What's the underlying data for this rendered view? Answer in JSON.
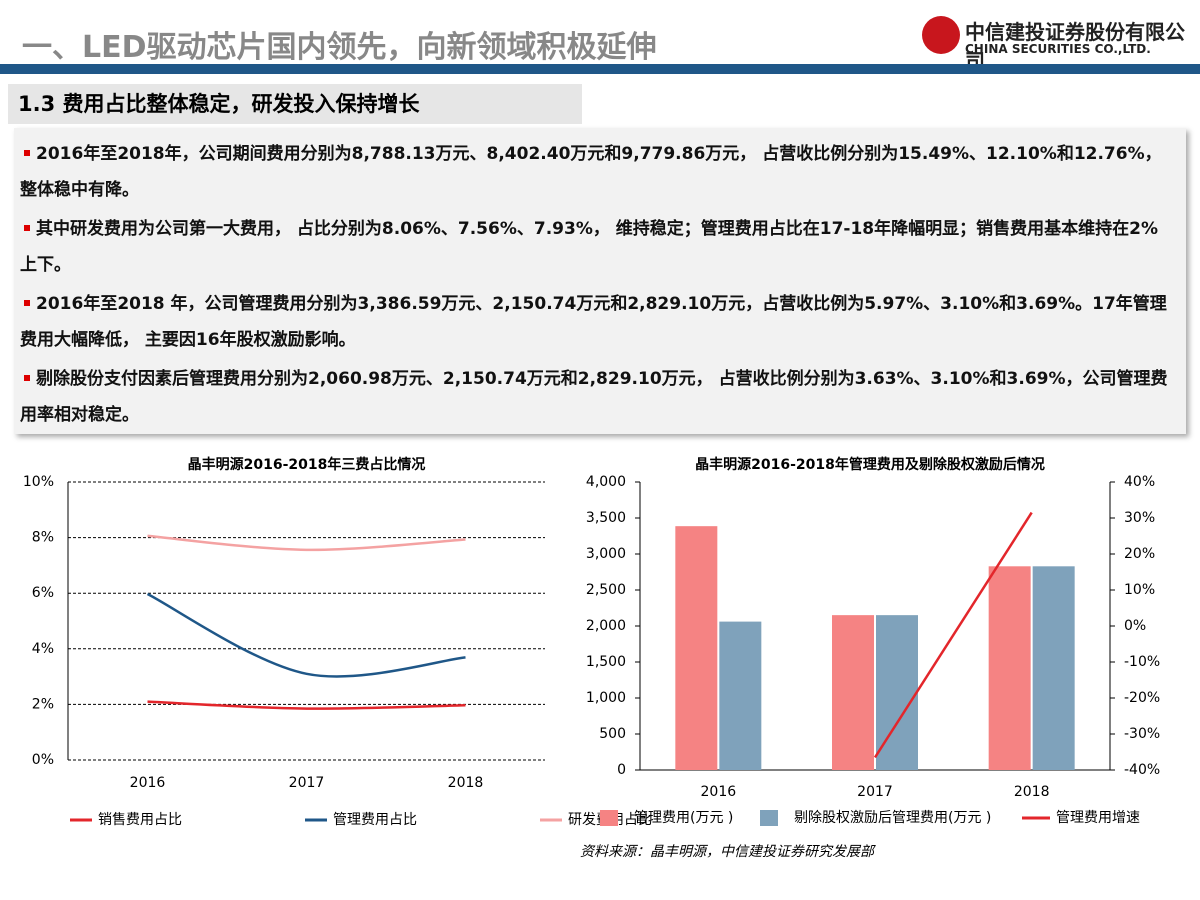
{
  "header": {
    "title": "一、LED驱动芯片国内领先，向新领域积极延伸",
    "logo_cn": "中信建投证券股份有限公司",
    "logo_en": "CHINA SECURITIES CO.,LTD."
  },
  "subtitle": "1.3 费用占比整体稳定，研发投入保持增长",
  "bullets": [
    "2016年至2018年，公司期间费用分别为8,788.13万元、8,402.40万元和9,779.86万元， 占营收比例分别为15.49%、12.10%和12.76%，整体稳中有降。",
    "其中研发费用为公司第一大费用， 占比分别为8.06%、7.56%、7.93%， 维持稳定；管理费用占比在17-18年降幅明显；销售费用基本维持在2%上下。",
    "2016年至2018 年，公司管理费用分别为3,386.59万元、2,150.74万元和2,829.10万元，占营收比例为5.97%、3.10%和3.69%。17年管理费用大幅降低， 主要因16年股权激励影响。",
    "剔除股份支付因素后管理费用分别为2,060.98万元、2,150.74万元和2,829.10万元， 占营收比例分别为3.63%、3.10%和3.69%，公司管理费用率相对稳定。"
  ],
  "chart_data": [
    {
      "type": "line",
      "title": "晶丰明源2016-2018年三费占比情况",
      "categories": [
        "2016",
        "2017",
        "2018"
      ],
      "series": [
        {
          "name": "销售费用占比",
          "color": "#e3262b",
          "values": [
            2.1,
            1.85,
            1.97
          ]
        },
        {
          "name": "管理费用占比",
          "color": "#1f5788",
          "values": [
            5.97,
            3.1,
            3.69
          ]
        },
        {
          "name": "研发费用占比",
          "color": "#f4a2a2",
          "values": [
            8.06,
            7.56,
            7.93
          ]
        }
      ],
      "ylim": [
        0,
        10
      ],
      "yticks": [
        {
          "value": 0,
          "label": "0%"
        },
        {
          "value": 2,
          "label": "2%"
        },
        {
          "value": 4,
          "label": "4%"
        },
        {
          "value": 6,
          "label": "6%"
        },
        {
          "value": 8,
          "label": "8%"
        },
        {
          "value": 10,
          "label": "10%"
        }
      ],
      "grid": true
    },
    {
      "type": "bar",
      "title": "晶丰明源2016-2018年管理费用及剔除股权激励后情况",
      "categories": [
        "2016",
        "2017",
        "2018"
      ],
      "series": [
        {
          "name": "管理费用(万元 )",
          "color": "#f58383",
          "values": [
            3386.59,
            2150.74,
            2829.1
          ]
        },
        {
          "name": "剔除股权激励后管理费用(万元 )",
          "color": "#7fa2bb",
          "values": [
            2060.98,
            2150.74,
            2829.1
          ]
        },
        {
          "name": "管理费用增速",
          "type": "line",
          "axis": "y2",
          "color": "#e3262b",
          "values": [
            null,
            -36.5,
            31.5
          ]
        }
      ],
      "ylim": [
        0,
        4000
      ],
      "yticks": [
        0,
        500,
        {
          "value": 1000,
          "label": "1,000"
        },
        {
          "value": 1500,
          "label": "1,500"
        },
        {
          "value": 2000,
          "label": "2,000"
        },
        {
          "value": 2500,
          "label": "2,500"
        },
        {
          "value": 3000,
          "label": "3,000"
        },
        {
          "value": 3500,
          "label": "3,500"
        },
        {
          "value": 4000,
          "label": "4,000"
        }
      ],
      "y2lim": [
        -40,
        40
      ],
      "y2ticks": [
        {
          "value": -40,
          "label": "-40%"
        },
        {
          "value": -30,
          "label": "-30%"
        },
        {
          "value": -20,
          "label": "-20%"
        },
        {
          "value": -10,
          "label": "-10%"
        },
        {
          "value": 0,
          "label": "0%"
        },
        {
          "value": 10,
          "label": "10%"
        },
        {
          "value": 20,
          "label": "20%"
        },
        {
          "value": 30,
          "label": "30%"
        },
        {
          "value": 40,
          "label": "40%"
        }
      ],
      "source": "资料来源：晶丰明源，中信建投证券研究发展部"
    }
  ]
}
